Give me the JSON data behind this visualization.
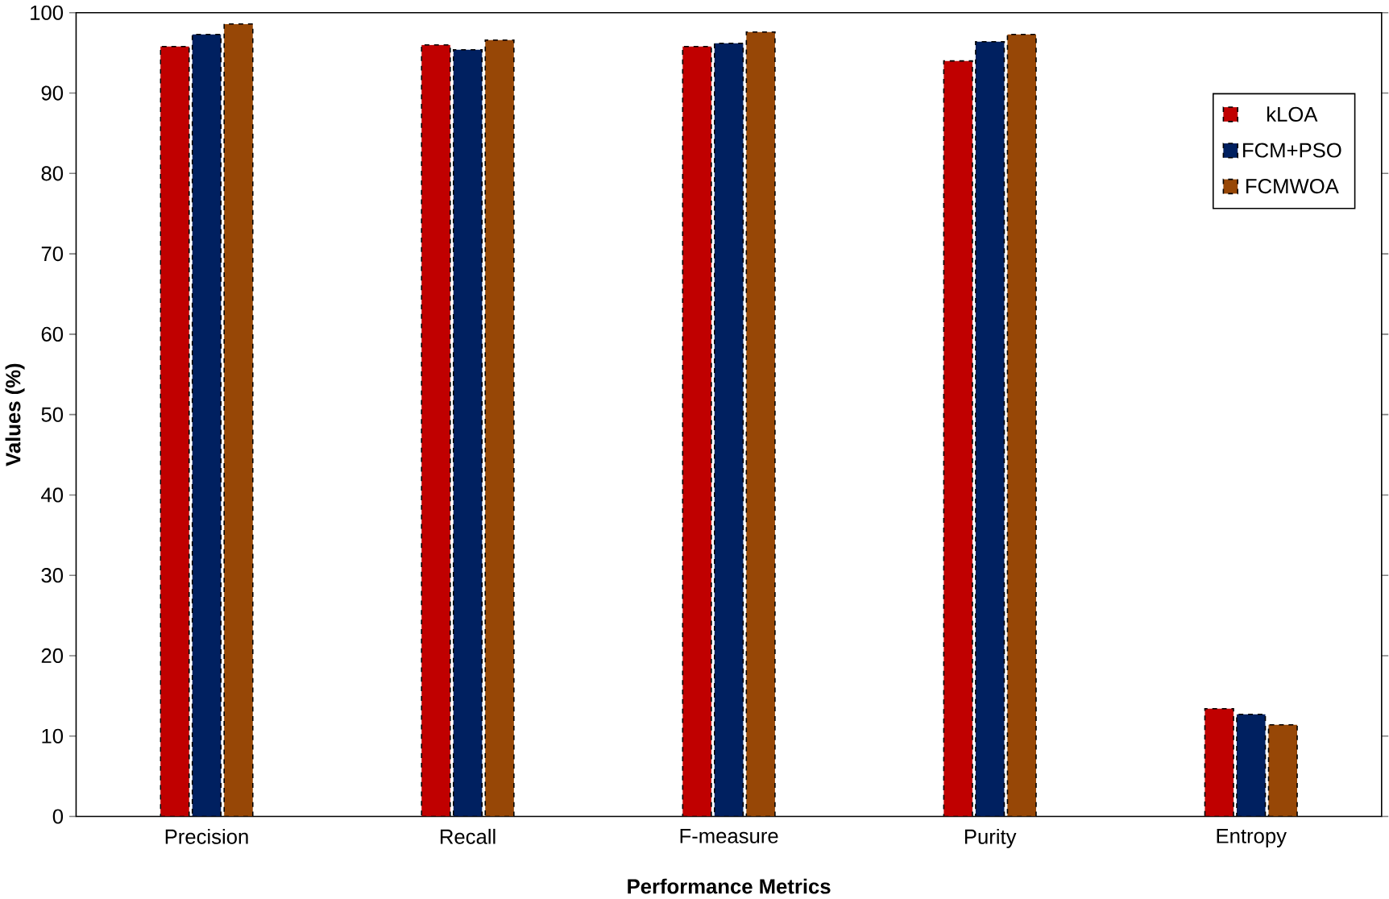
{
  "chart_data": {
    "type": "bar",
    "xlabel": "Performance Metrics",
    "ylabel": "Values (%)",
    "categories": [
      "Precision",
      "Recall",
      "F-measure",
      "Purity",
      "Entropy"
    ],
    "series": [
      {
        "name": "kLOA",
        "color": "#c00000",
        "values": [
          95.8,
          96.0,
          95.8,
          94.0,
          13.4
        ]
      },
      {
        "name": "FCM+PSO",
        "color": "#002060",
        "values": [
          97.3,
          95.4,
          96.2,
          96.4,
          12.7
        ]
      },
      {
        "name": "FCMWOA",
        "color": "#974706",
        "values": [
          98.6,
          96.6,
          97.6,
          97.3,
          11.4
        ]
      }
    ],
    "ylim": [
      0,
      100
    ],
    "yticks": [
      0,
      10,
      20,
      30,
      40,
      50,
      60,
      70,
      80,
      90,
      100
    ],
    "legend": "top right",
    "grid": false,
    "line_style": "dashed"
  }
}
